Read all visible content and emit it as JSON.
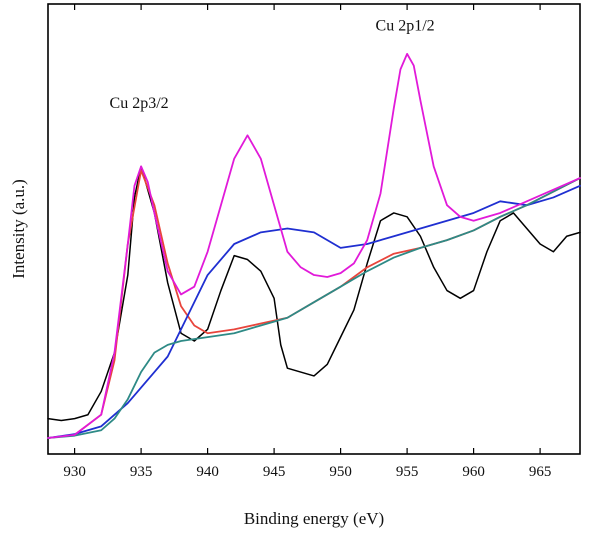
{
  "chart_data": {
    "type": "line",
    "title": "",
    "xlabel": "Binding energy (eV)",
    "ylabel": "Intensity (a.u.)",
    "xlim": [
      928,
      968
    ],
    "ylim": [
      0,
      100
    ],
    "xticks": [
      930,
      935,
      940,
      945,
      950,
      955,
      960,
      965
    ],
    "yticks_shown": false,
    "grid": false,
    "legend": "none",
    "annotations": [
      {
        "text": "Cu 2p3/2",
        "x": 935,
        "y": 84
      },
      {
        "text": "Cu 2p1/2",
        "x": 955,
        "y": 104
      }
    ],
    "series": [
      {
        "name": "",
        "color": "#000000",
        "x": [
          928,
          929,
          930,
          931,
          932,
          933,
          934,
          934.5,
          935,
          935.5,
          936,
          937,
          938,
          939,
          940,
          941,
          942,
          943,
          944,
          945,
          945.5,
          946,
          947,
          948,
          949,
          950,
          951,
          952,
          953,
          954,
          955,
          956,
          957,
          958,
          959,
          960,
          961,
          962,
          963,
          964,
          965,
          966,
          967,
          968
        ],
        "y": [
          5,
          4.5,
          5,
          6,
          12,
          22,
          42,
          62,
          70,
          64,
          58,
          40,
          27,
          25,
          28,
          38,
          47,
          46,
          43,
          36,
          24,
          18,
          17,
          16,
          19,
          26,
          33,
          45,
          56,
          58,
          57,
          52,
          44,
          38,
          36,
          38,
          48,
          56,
          58,
          54,
          50,
          48,
          52,
          53
        ]
      },
      {
        "name": "",
        "color": "#e8453c",
        "x": [
          928,
          930,
          932,
          933,
          934,
          935,
          936,
          937,
          938,
          939,
          940,
          942,
          944,
          946,
          948,
          950,
          952,
          954,
          956,
          958,
          960,
          962,
          964,
          966,
          968
        ],
        "y": [
          0,
          0.8,
          6,
          20,
          50,
          69,
          60,
          45,
          34,
          29,
          27,
          28,
          29.5,
          31,
          35,
          39,
          44,
          47.5,
          49,
          51,
          53.5,
          57,
          60,
          63.5,
          67
        ]
      },
      {
        "name": "",
        "color": "#1f2fd1",
        "x": [
          928,
          930,
          932,
          933,
          934,
          935,
          936,
          937,
          938,
          940,
          942,
          944,
          946,
          948,
          950,
          952,
          954,
          956,
          958,
          960,
          962,
          964,
          966,
          968
        ],
        "y": [
          0,
          1,
          3,
          6,
          9,
          13,
          17,
          21,
          28,
          42,
          50,
          53,
          54,
          53,
          49,
          50,
          52,
          54,
          56,
          58,
          61,
          60,
          62,
          65
        ]
      },
      {
        "name": "",
        "color": "#2e8a86",
        "x": [
          928,
          930,
          932,
          933,
          934,
          935,
          936,
          937,
          938,
          940,
          942,
          944,
          946,
          948,
          950,
          952,
          954,
          956,
          958,
          960,
          962,
          964,
          966,
          968
        ],
        "y": [
          0,
          0.6,
          2,
          5,
          10,
          17,
          22,
          24,
          25,
          26,
          27,
          29,
          31,
          35,
          39,
          43,
          46.5,
          49,
          51,
          53.5,
          57,
          60,
          63.5,
          67
        ]
      },
      {
        "name": "",
        "color": "#e11ad9",
        "x": [
          928,
          930,
          932,
          933,
          934,
          934.5,
          935,
          935.5,
          936,
          937,
          938,
          939,
          940,
          941,
          942,
          943,
          944,
          945,
          946,
          947,
          948,
          949,
          950,
          951,
          952,
          953,
          954,
          954.5,
          955,
          955.5,
          956,
          957,
          958,
          959,
          960,
          962,
          964,
          966,
          968
        ],
        "y": [
          0,
          0.8,
          6,
          22,
          50,
          65,
          70,
          66,
          58,
          43,
          37,
          39,
          48,
          60,
          72,
          78,
          72,
          60,
          48,
          44,
          42,
          41.5,
          42.5,
          45,
          51,
          63,
          85,
          95,
          99,
          96,
          87,
          70,
          60,
          57,
          56,
          58,
          61,
          64,
          67
        ]
      }
    ]
  }
}
